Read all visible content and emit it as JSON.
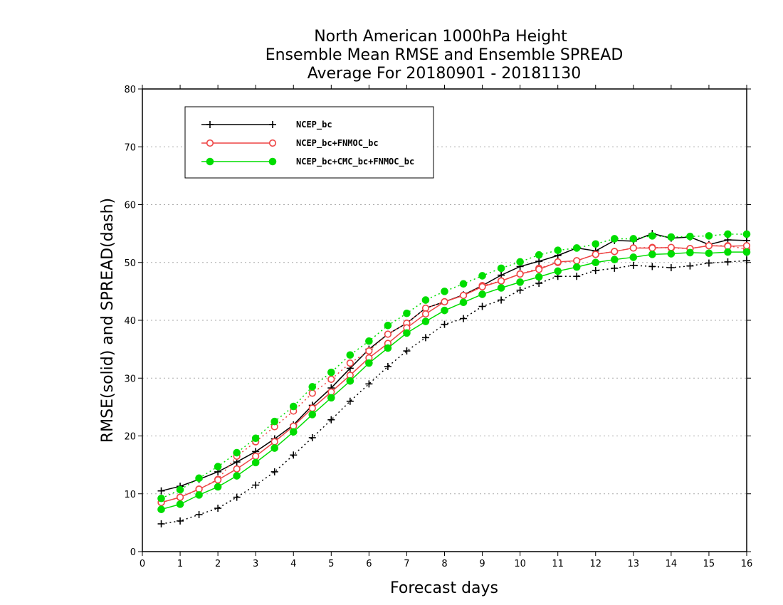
{
  "chart_data": {
    "type": "line",
    "title": [
      "North American 1000hPa Height",
      "Ensemble Mean RMSE and Ensemble SPREAD",
      "Average For 20180901 - 20181130"
    ],
    "xlabel": "Forecast days",
    "ylabel": "RMSE(solid) and SPREAD(dash)",
    "xlim": [
      0,
      16
    ],
    "ylim": [
      0,
      80
    ],
    "xticks": [
      "0",
      "1",
      "2",
      "3",
      "4",
      "5",
      "6",
      "7",
      "8",
      "9",
      "10",
      "11",
      "12",
      "13",
      "14",
      "15",
      "16"
    ],
    "yticks": [
      "0",
      "10",
      "20",
      "30",
      "40",
      "50",
      "60",
      "70",
      "80"
    ],
    "grid": "horizontal dotted",
    "legend_position": "top-left",
    "x": [
      0.5,
      1,
      1.5,
      2,
      2.5,
      3,
      3.5,
      4,
      4.5,
      5,
      5.5,
      6,
      6.5,
      7,
      7.5,
      8,
      8.5,
      9,
      9.5,
      10,
      10.5,
      11,
      11.5,
      12,
      12.5,
      13,
      13.5,
      14,
      14.5,
      15,
      15.5,
      16
    ],
    "series": [
      {
        "name": "NCEP_bc",
        "color": "#000000",
        "marker": "plus",
        "rmse": [
          10.5,
          11.3,
          12.5,
          13.8,
          15.5,
          17.3,
          19.5,
          21.9,
          25.3,
          28.3,
          31.7,
          35.0,
          37.6,
          39.5,
          42.1,
          43.2,
          44.4,
          46.0,
          47.8,
          49.3,
          50.2,
          51.2,
          52.5,
          52.0,
          53.8,
          53.7,
          55.0,
          54.2,
          54.4,
          53.1,
          53.9,
          53.8
        ],
        "spread": [
          4.8,
          5.3,
          6.4,
          7.5,
          9.4,
          11.5,
          13.8,
          16.7,
          19.7,
          22.8,
          26.0,
          29.0,
          32.0,
          34.7,
          37.0,
          39.3,
          40.3,
          42.4,
          43.5,
          45.2,
          46.4,
          47.6,
          47.6,
          48.6,
          49.0,
          49.5,
          49.3,
          49.1,
          49.4,
          49.9,
          50.1,
          50.3
        ]
      },
      {
        "name": "NCEP_bc+FNMOC_bc",
        "color": "#ee4444",
        "marker": "open-circle",
        "rmse": [
          8.5,
          9.4,
          10.8,
          12.4,
          14.3,
          16.5,
          19.0,
          21.7,
          24.8,
          27.6,
          30.5,
          33.5,
          36.0,
          38.7,
          41.1,
          43.2,
          44.3,
          45.8,
          46.8,
          48.0,
          48.8,
          50.1,
          50.3,
          51.4,
          51.9,
          52.5,
          52.5,
          52.6,
          52.4,
          52.9,
          52.8,
          52.9
        ],
        "spread": [
          8.5,
          9.4,
          10.8,
          12.5,
          16.5,
          19.0,
          21.6,
          24.3,
          27.4,
          29.8,
          32.6,
          34.7,
          37.6,
          39.5,
          42.1,
          43.2,
          44.3,
          46.0,
          46.8,
          48.0,
          49.0,
          50.0,
          50.3,
          51.4,
          51.9,
          52.5,
          52.6,
          52.5,
          52.4,
          52.9,
          52.9,
          52.3
        ]
      },
      {
        "name": "NCEP_bc+CMC_bc+FNMOC_bc",
        "color": "#00dd00",
        "marker": "filled-circle",
        "rmse": [
          7.3,
          8.2,
          9.8,
          11.2,
          13.1,
          15.4,
          17.9,
          20.7,
          23.7,
          26.6,
          29.5,
          32.6,
          35.2,
          37.8,
          39.8,
          41.7,
          43.1,
          44.5,
          45.6,
          46.6,
          47.5,
          48.5,
          49.2,
          50.0,
          50.5,
          50.9,
          51.4,
          51.5,
          51.7,
          51.6,
          51.8,
          51.8
        ],
        "spread": [
          9.2,
          10.7,
          12.7,
          14.7,
          17.1,
          19.6,
          22.5,
          25.1,
          28.5,
          31.0,
          34.0,
          36.4,
          39.1,
          41.2,
          43.5,
          45.0,
          46.3,
          47.7,
          49.0,
          50.1,
          51.3,
          52.1,
          52.5,
          53.2,
          54.1,
          54.1,
          54.6,
          54.4,
          54.5,
          54.6,
          54.9,
          54.9
        ]
      }
    ]
  }
}
